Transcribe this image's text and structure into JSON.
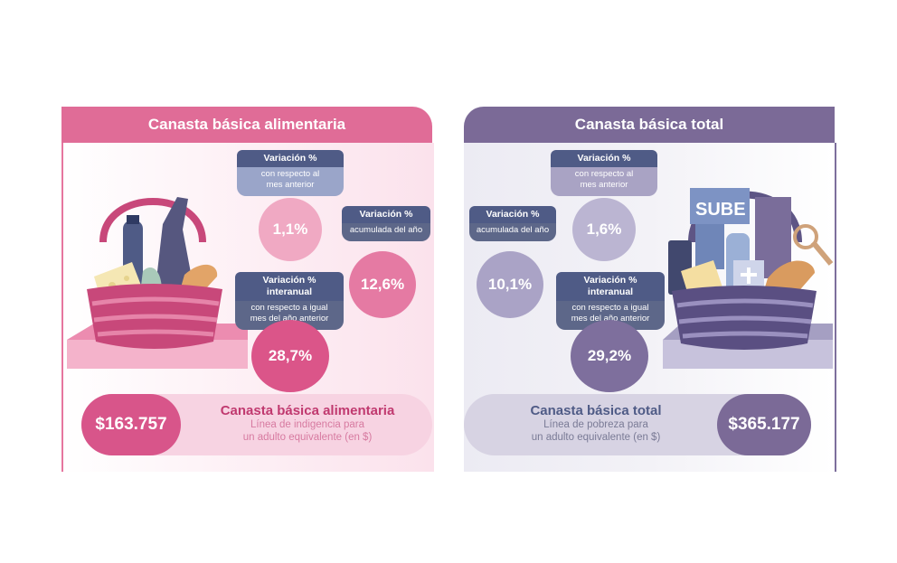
{
  "left": {
    "header": "Canasta básica alimentaria",
    "monthly": {
      "title": "Variación %",
      "desc1": "con respecto al",
      "desc2": "mes anterior",
      "value": "1,1%"
    },
    "accumulated": {
      "title": "Variación %",
      "desc": "acumulada del año",
      "value": "12,6%"
    },
    "yearly": {
      "title": "Variación % interanual",
      "desc1": "con respecto a igual",
      "desc2": "mes del año anterior",
      "value": "28,7%"
    },
    "price": "$163.757",
    "strip_title": "Canasta básica alimentaria",
    "strip_sub1": "Línea de indigencia para",
    "strip_sub2": "un adulto equivalente (en $)"
  },
  "right": {
    "header": "Canasta básica total",
    "monthly": {
      "title": "Variación %",
      "desc1": "con respecto al",
      "desc2": "mes anterior",
      "value": "1,6%"
    },
    "accumulated": {
      "title": "Variación %",
      "desc": "acumulada del año",
      "value": "10,1%"
    },
    "yearly": {
      "title": "Variación % interanual",
      "desc1": "con respecto a igual",
      "desc2": "mes del año anterior",
      "value": "29,2%"
    },
    "price": "$365.177",
    "strip_title": "Canasta básica total",
    "strip_sub1": "Línea de pobreza para",
    "strip_sub2": "un adulto equivalente (en $)",
    "card_label": "SUBE"
  },
  "colors": {
    "pink": "#e06c97",
    "purple": "#7b6a97",
    "navy": "#4f5b86"
  }
}
